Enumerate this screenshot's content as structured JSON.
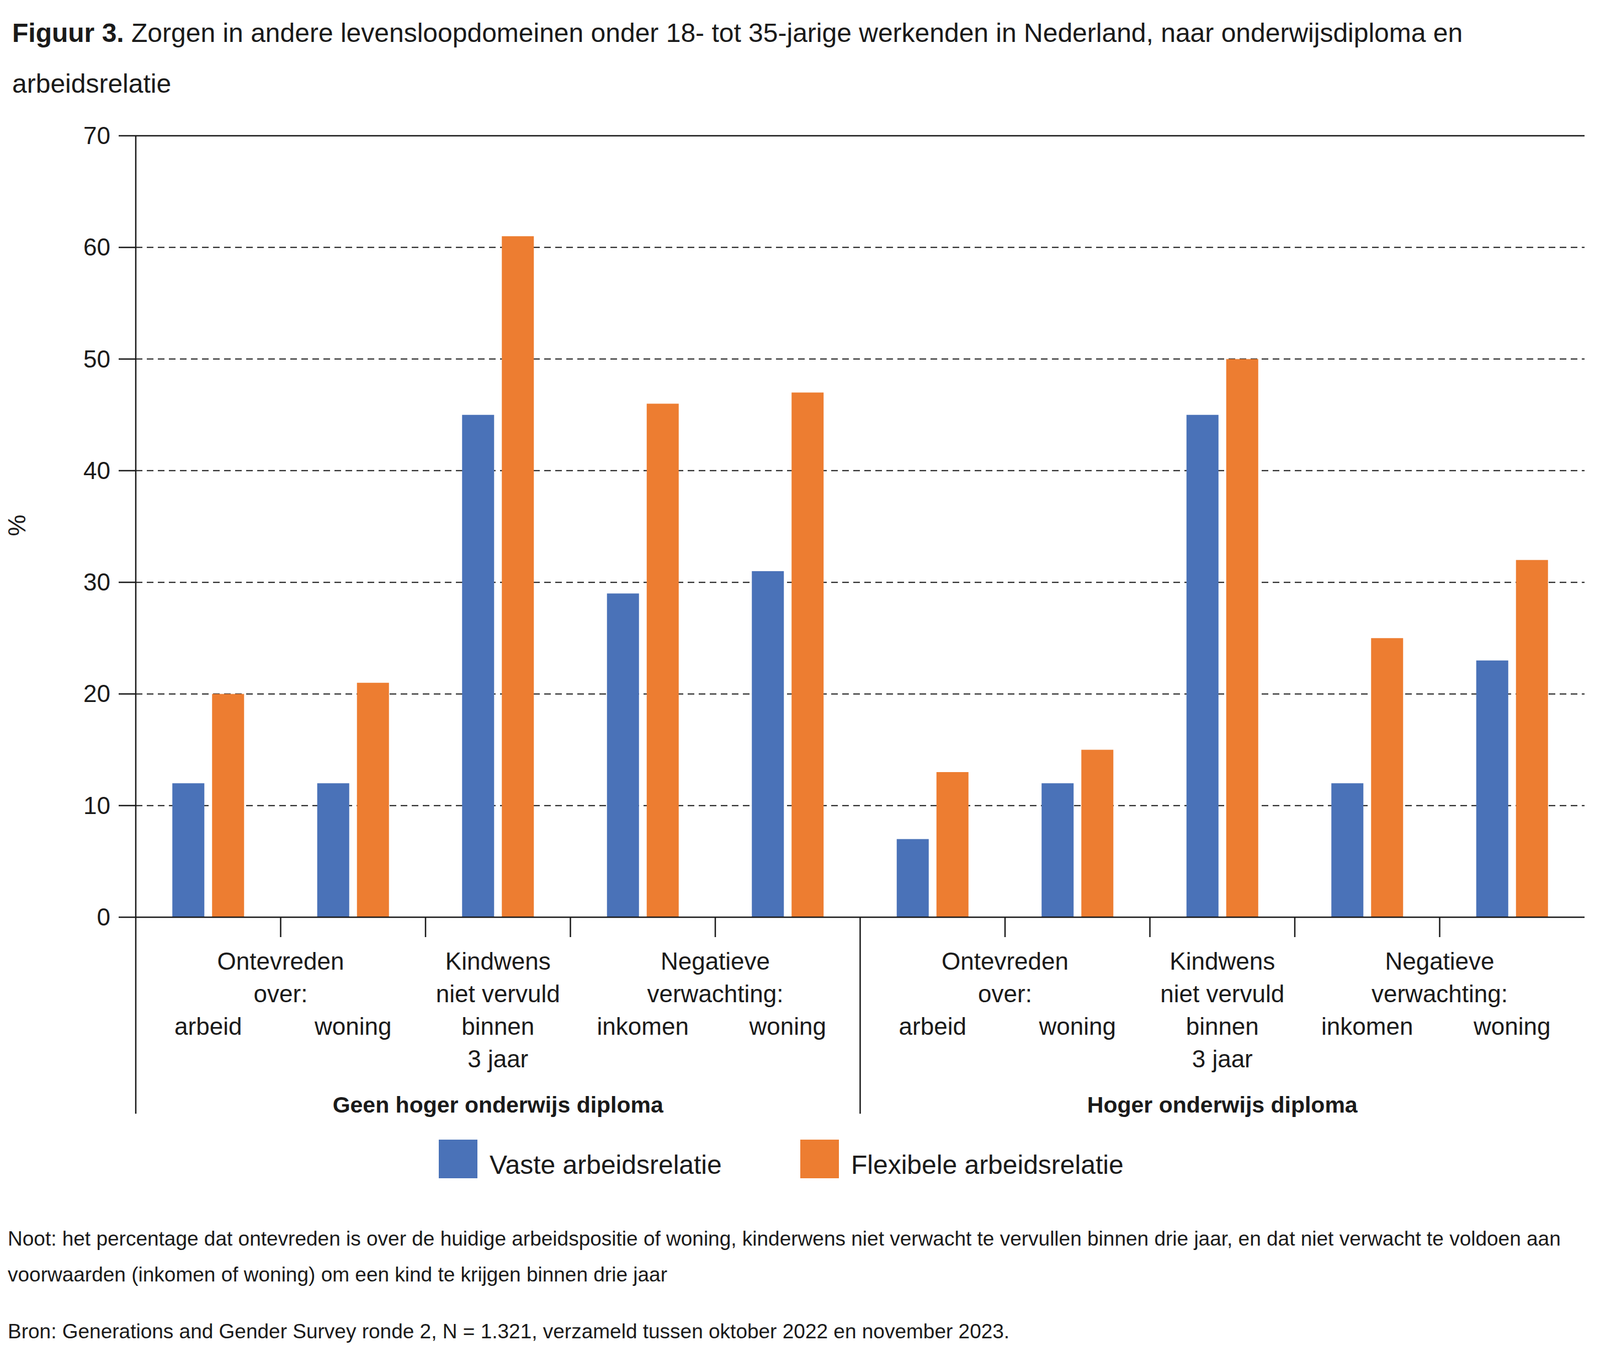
{
  "chart_data": {
    "type": "bar",
    "title_label": "Figuur 3.",
    "title": "Zorgen in andere levensloopdomeinen onder 18- tot 35-jarige werkenden in Nederland, naar onderwijsdiploma en arbeidsrelatie",
    "y_label": "%",
    "categories": [
      "arbeid",
      "woning",
      "Kindwens\nniet vervuld\nbinnen\n3 jaar",
      "inkomen",
      "woning",
      "arbeid",
      "woning",
      "Kindwens\nniet vervuld\nbinnen\n3 jaar",
      "inkomen",
      "woning"
    ],
    "category_groups": [
      {
        "label": "Ontevreden\nover:",
        "start": 0,
        "end": 1
      },
      {
        "label": "Negatieve\nverwachting:",
        "start": 3,
        "end": 4
      },
      {
        "label": "Ontevreden\nover:",
        "start": 5,
        "end": 6
      },
      {
        "label": "Negatieve\nverwachting:",
        "start": 8,
        "end": 9
      }
    ],
    "groups": [
      {
        "label": "Geen hoger onderwijs diploma",
        "start": 0,
        "end": 4
      },
      {
        "label": "Hoger onderwijs diploma",
        "start": 5,
        "end": 9
      }
    ],
    "series": [
      {
        "name": "Vaste arbeidsrelatie",
        "color": "#4a72b8",
        "values": [
          12,
          12,
          45,
          29,
          31,
          7,
          12,
          45,
          12,
          23
        ]
      },
      {
        "name": "Flexibele arbeidsrelatie",
        "color": "#ed7d31",
        "values": [
          20,
          21,
          61,
          46,
          47,
          13,
          15,
          50,
          25,
          32
        ]
      }
    ],
    "ylim": [
      0,
      70
    ],
    "yticks": [
      0,
      10,
      20,
      30,
      40,
      50,
      60,
      70
    ],
    "grid": true,
    "legend": "bottom",
    "note": "Noot: het percentage dat ontevreden is over de huidige arbeidspositie of woning, kinderwens niet verwacht te vervullen binnen drie jaar, en dat niet verwacht te voldoen aan voorwaarden (inkomen of woning) om een kind te krijgen binnen drie jaar",
    "source": "Bron: Generations and Gender Survey ronde 2, N = 1.321, verzameld tussen oktober 2022 en november 2023."
  }
}
